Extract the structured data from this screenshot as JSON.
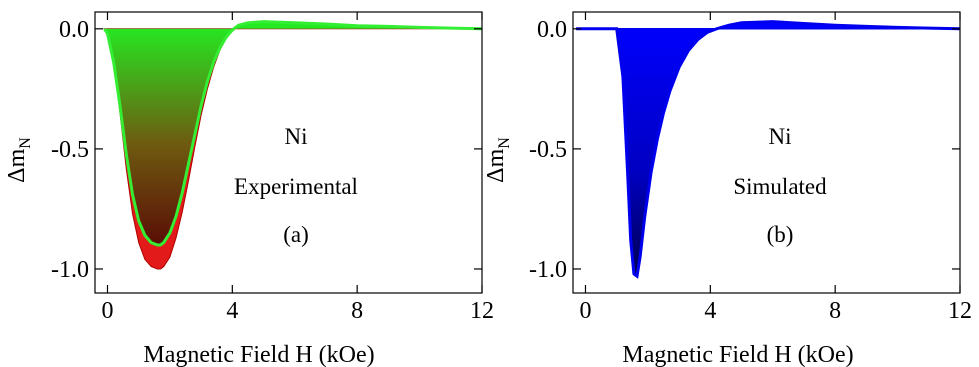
{
  "chart_data": [
    {
      "type": "area",
      "panel_label": "(a)",
      "annotation": [
        "Ni",
        "Experimental"
      ],
      "xlabel": "Magnetic Field H (kOe)",
      "ylabel": "Δm",
      "ylabel_sub": "N",
      "xlim": [
        -0.4,
        12
      ],
      "ylim": [
        -1.1,
        0.07
      ],
      "xticks": [
        0,
        4,
        8,
        12
      ],
      "yticks": [
        0.0,
        -0.5,
        -1.0
      ],
      "ytick_labels": [
        "0.0",
        "-0.5",
        "-1.0"
      ],
      "series": [
        {
          "color": "#e31a1a",
          "x": [
            -0.1,
            0.0,
            0.2,
            0.4,
            0.6,
            0.8,
            1.0,
            1.2,
            1.4,
            1.6,
            1.7,
            1.8,
            2.0,
            2.2,
            2.4,
            2.6,
            2.8,
            3.0,
            3.2,
            3.4,
            3.6,
            3.8,
            4.0,
            4.2,
            4.5,
            5.0,
            6.0,
            7.0,
            8.0,
            9.0,
            10.0,
            11.0,
            12.0
          ],
          "y": [
            0.0,
            -0.02,
            -0.15,
            -0.35,
            -0.58,
            -0.77,
            -0.89,
            -0.96,
            -0.99,
            -1.0,
            -1.0,
            -0.99,
            -0.95,
            -0.87,
            -0.76,
            -0.63,
            -0.49,
            -0.36,
            -0.25,
            -0.16,
            -0.09,
            -0.04,
            -0.01,
            0.01,
            0.02,
            0.025,
            0.02,
            0.015,
            0.01,
            0.008,
            0.005,
            0.002,
            0.0
          ]
        },
        {
          "color": "#33ee33",
          "x": [
            -0.1,
            0.0,
            0.2,
            0.4,
            0.6,
            0.8,
            1.0,
            1.2,
            1.4,
            1.6,
            1.7,
            1.8,
            2.0,
            2.2,
            2.4,
            2.6,
            2.8,
            3.0,
            3.2,
            3.4,
            3.6,
            3.8,
            4.0,
            4.2,
            4.5,
            5.0,
            6.0,
            7.0,
            8.0,
            9.0,
            10.0,
            11.0,
            12.0
          ],
          "y": [
            0.0,
            -0.02,
            -0.14,
            -0.32,
            -0.52,
            -0.69,
            -0.8,
            -0.86,
            -0.89,
            -0.9,
            -0.9,
            -0.89,
            -0.85,
            -0.78,
            -0.68,
            -0.56,
            -0.44,
            -0.32,
            -0.22,
            -0.14,
            -0.08,
            -0.035,
            -0.005,
            0.015,
            0.025,
            0.03,
            0.025,
            0.02,
            0.013,
            0.01,
            0.006,
            0.003,
            0.0
          ]
        }
      ]
    },
    {
      "type": "area",
      "panel_label": "(b)",
      "annotation": [
        "Ni",
        "Simulated"
      ],
      "xlabel": "Magnetic Field H (kOe)",
      "ylabel": "Δm",
      "ylabel_sub": "N",
      "xlim": [
        -0.4,
        12
      ],
      "ylim": [
        -1.1,
        0.07
      ],
      "xticks": [
        0,
        4,
        8,
        12
      ],
      "yticks": [
        0.0,
        -0.5,
        -1.0
      ],
      "ytick_labels": [
        "0.0",
        "-0.5",
        "-1.0"
      ],
      "series": [
        {
          "color": "#0000ee",
          "x": [
            -0.3,
            1.0,
            1.2,
            1.35,
            1.45,
            1.55,
            1.65,
            1.75,
            1.9,
            2.1,
            2.3,
            2.5,
            2.7,
            3.0,
            3.3,
            3.6,
            3.9,
            4.2,
            4.6,
            5.0,
            6.0,
            7.0,
            8.0,
            9.0,
            10.0,
            11.0,
            12.0
          ],
          "y": [
            0.0,
            0.0,
            -0.2,
            -0.6,
            -0.88,
            -1.02,
            -1.03,
            -0.95,
            -0.78,
            -0.6,
            -0.46,
            -0.35,
            -0.26,
            -0.16,
            -0.09,
            -0.045,
            -0.015,
            0.0,
            0.015,
            0.025,
            0.03,
            0.022,
            0.015,
            0.01,
            0.006,
            0.003,
            0.0
          ]
        }
      ]
    }
  ]
}
